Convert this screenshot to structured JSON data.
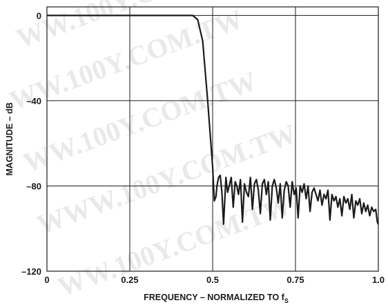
{
  "chart_data": {
    "type": "line",
    "title": "",
    "xlabel": "FREQUENCY – NORMALIZED TO f",
    "xlabel_subscript": "S",
    "ylabel": "MAGNITUDE – dB",
    "xlim": [
      0,
      1.0
    ],
    "ylim": [
      -120,
      4
    ],
    "xticks": [
      {
        "value": 0,
        "label": "0"
      },
      {
        "value": 0.25,
        "label": "0.25"
      },
      {
        "value": 0.5,
        "label": "0.5"
      },
      {
        "value": 0.75,
        "label": "0.75"
      },
      {
        "value": 1.0,
        "label": "1.0"
      }
    ],
    "yticks": [
      {
        "value": 0,
        "label": "0"
      },
      {
        "value": -40,
        "label": "–40"
      },
      {
        "value": -80,
        "label": "–80"
      },
      {
        "value": -120,
        "label": "–120"
      }
    ],
    "grid": true,
    "series": [
      {
        "color": "#1a1a1a",
        "x": [
          0,
          0.44,
          0.455,
          0.47,
          0.485,
          0.5,
          0.505,
          0.51,
          0.513,
          0.518,
          0.523,
          0.528,
          0.533,
          0.54,
          0.545,
          0.55,
          0.556,
          0.562,
          0.568,
          0.573,
          0.578,
          0.584,
          0.59,
          0.596,
          0.602,
          0.608,
          0.614,
          0.62,
          0.626,
          0.632,
          0.638,
          0.644,
          0.65,
          0.656,
          0.662,
          0.668,
          0.674,
          0.68,
          0.686,
          0.692,
          0.698,
          0.704,
          0.71,
          0.716,
          0.722,
          0.728,
          0.734,
          0.74,
          0.746,
          0.752,
          0.758,
          0.764,
          0.77,
          0.776,
          0.782,
          0.788,
          0.794,
          0.8,
          0.806,
          0.812,
          0.818,
          0.824,
          0.83,
          0.836,
          0.842,
          0.848,
          0.854,
          0.86,
          0.866,
          0.872,
          0.878,
          0.884,
          0.89,
          0.896,
          0.902,
          0.908,
          0.914,
          0.92,
          0.926,
          0.932,
          0.938,
          0.944,
          0.95,
          0.956,
          0.962,
          0.968,
          0.974,
          0.98,
          0.986,
          0.992,
          0.997,
          1.0
        ],
        "y": [
          0,
          0,
          -2,
          -12,
          -40,
          -71,
          -87,
          -85,
          -80,
          -76,
          -75,
          -83,
          -98,
          -76,
          -83,
          -80,
          -76,
          -90,
          -78,
          -80,
          -84,
          -77,
          -97,
          -79,
          -83,
          -85,
          -76,
          -91,
          -79,
          -77,
          -82,
          -93,
          -79,
          -77,
          -84,
          -78,
          -96,
          -80,
          -77,
          -81,
          -88,
          -79,
          -95,
          -82,
          -78,
          -80,
          -90,
          -78,
          -84,
          -81,
          -95,
          -80,
          -83,
          -79,
          -86,
          -80,
          -92,
          -83,
          -81,
          -84,
          -87,
          -82,
          -89,
          -84,
          -86,
          -82,
          -96,
          -84,
          -87,
          -85,
          -90,
          -86,
          -94,
          -85,
          -88,
          -86,
          -91,
          -84,
          -95,
          -87,
          -89,
          -86,
          -93,
          -88,
          -92,
          -89,
          -94,
          -90,
          -92,
          -91,
          -97,
          -98
        ]
      }
    ]
  }
}
